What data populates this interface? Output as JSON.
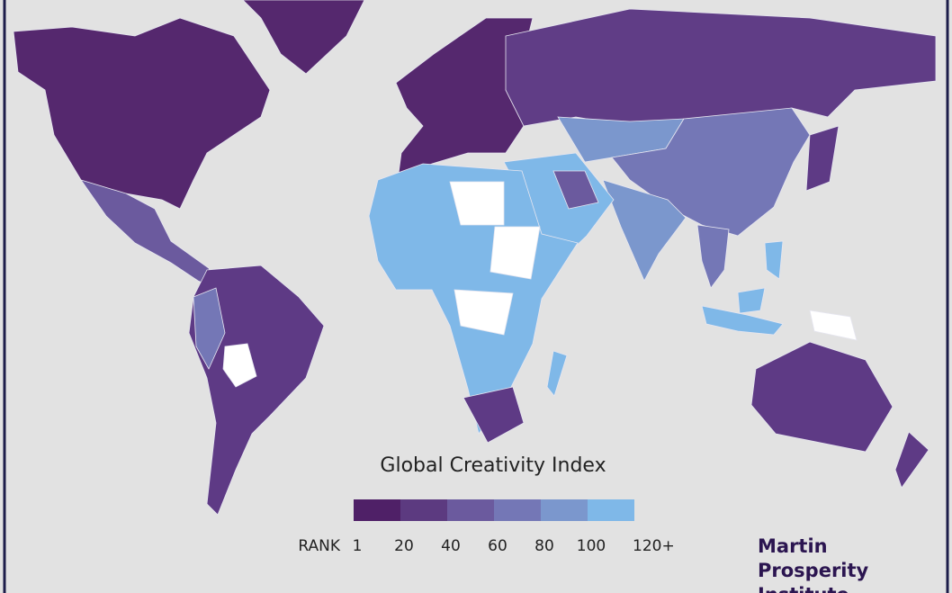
{
  "title": "Global Creativity Index",
  "legend": {
    "label": "RANK",
    "colors": [
      "#4f2067",
      "#5c3a80",
      "#6b5a9e",
      "#7477b6",
      "#7b97cd",
      "#7fb8e8"
    ],
    "ticks": [
      "1",
      "20",
      "40",
      "60",
      "80",
      "100",
      "120+"
    ]
  },
  "credit": [
    "Martin",
    "Prosperity",
    "Institute"
  ]
}
